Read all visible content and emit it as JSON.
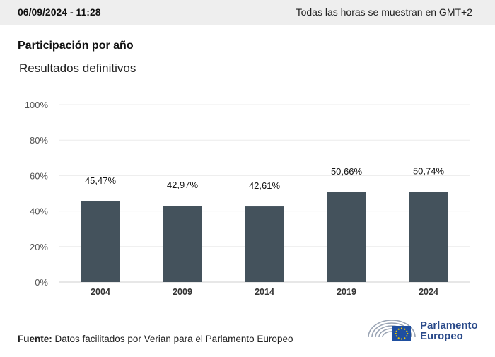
{
  "header": {
    "timestamp": "06/09/2024 - 11:28",
    "timezone_note": "Todas las horas se muestran en GMT+2"
  },
  "chart_header": {
    "title": "Participación por año",
    "subtitle": "Resultados definitivos"
  },
  "chart_data": {
    "type": "bar",
    "categories": [
      "2004",
      "2009",
      "2014",
      "2019",
      "2024"
    ],
    "values": [
      45.47,
      42.97,
      42.61,
      50.66,
      50.74
    ],
    "data_labels": [
      "45,47%",
      "42,97%",
      "42,61%",
      "50,66%",
      "50,74%"
    ],
    "ylim": [
      0,
      100
    ],
    "yticks": [
      0,
      20,
      40,
      60,
      80,
      100
    ],
    "ytick_labels": [
      "0%",
      "20%",
      "40%",
      "60%",
      "80%",
      "100%"
    ],
    "grid": true,
    "bar_color": "#44525c"
  },
  "footer": {
    "source_label": "Fuente:",
    "source_text": "Datos facilitados por Verian para el Parlamento Europeo"
  },
  "logo": {
    "line1": "Parlamento",
    "line2": "Europeo",
    "icon": "european-parliament-hemicycle-icon",
    "color": "#2a4a8a"
  }
}
